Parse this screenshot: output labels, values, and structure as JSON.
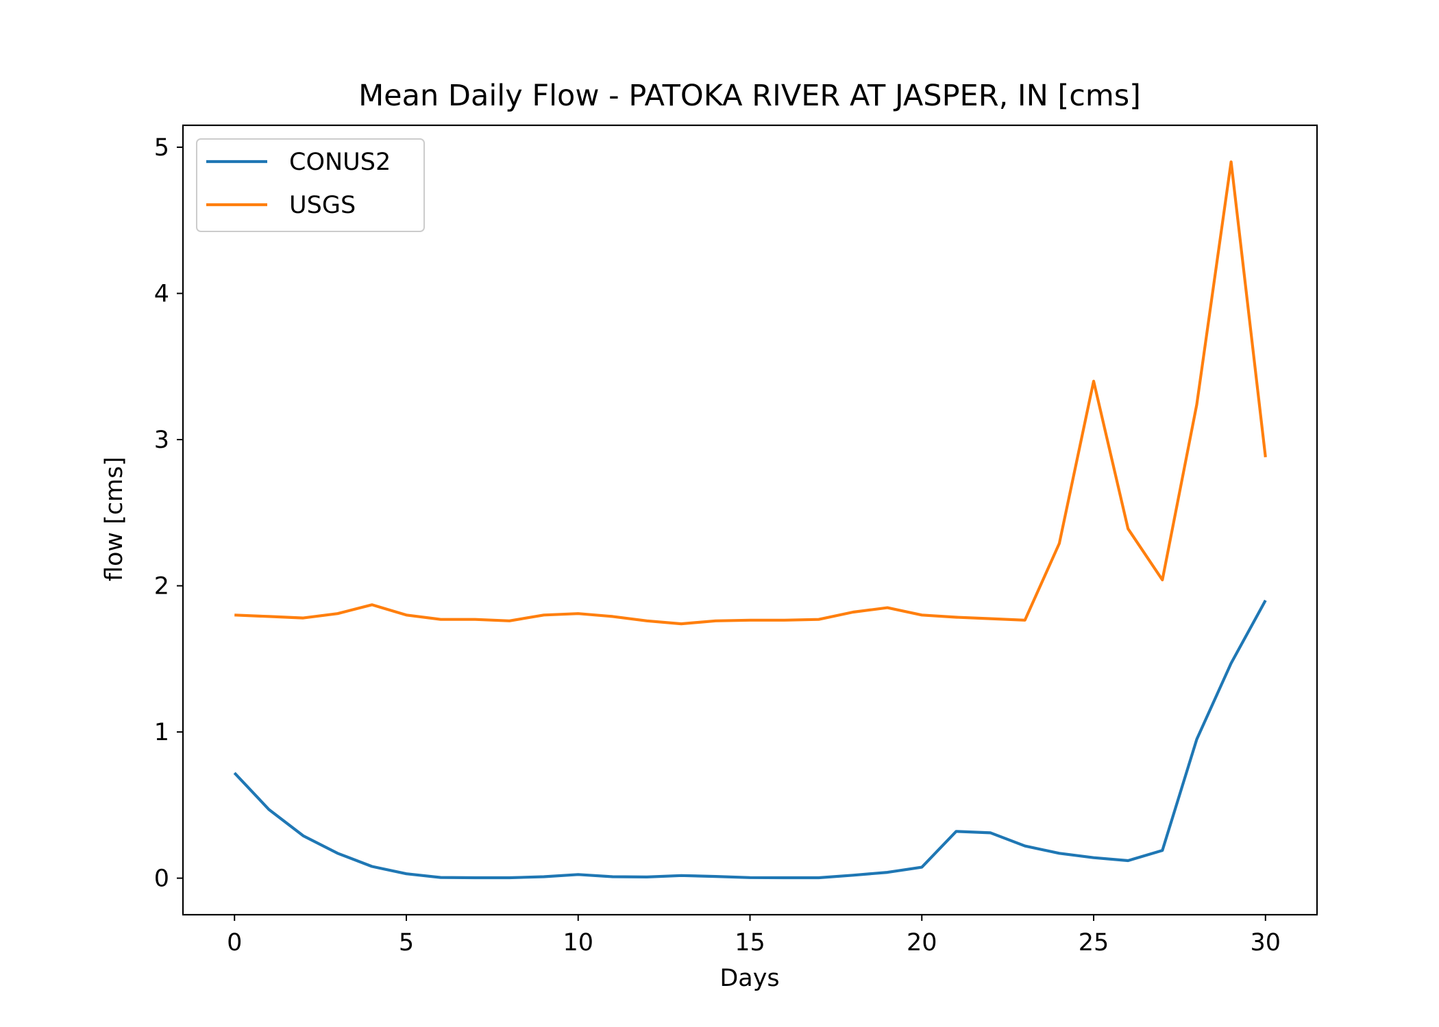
{
  "chart_data": {
    "type": "line",
    "title": "Mean Daily Flow - PATOKA RIVER AT JASPER, IN [cms]",
    "xlabel": "Days",
    "ylabel": "flow [cms]",
    "xlim": [
      -1.5,
      31.5
    ],
    "ylim": [
      -0.25,
      5.15
    ],
    "xticks": [
      0,
      5,
      10,
      15,
      20,
      25,
      30
    ],
    "yticks": [
      0,
      1,
      2,
      3,
      4,
      5
    ],
    "grid": false,
    "legend_position": "top-left",
    "x": [
      0,
      1,
      2,
      3,
      4,
      5,
      6,
      7,
      8,
      9,
      10,
      11,
      12,
      13,
      14,
      15,
      16,
      17,
      18,
      19,
      20,
      21,
      22,
      23,
      24,
      25,
      26,
      27,
      28,
      29,
      30
    ],
    "series": [
      {
        "name": "CONUS2",
        "color": "#1f77b4",
        "values": [
          0.72,
          0.47,
          0.29,
          0.17,
          0.08,
          0.03,
          0.005,
          0.003,
          0.003,
          0.01,
          0.025,
          0.01,
          0.008,
          0.018,
          0.012,
          0.004,
          0.003,
          0.003,
          0.02,
          0.04,
          0.075,
          0.32,
          0.31,
          0.22,
          0.17,
          0.14,
          0.12,
          0.19,
          0.95,
          1.47,
          1.9
        ]
      },
      {
        "name": "USGS",
        "color": "#ff7f0e",
        "values": [
          1.8,
          1.79,
          1.78,
          1.81,
          1.87,
          1.8,
          1.77,
          1.77,
          1.76,
          1.8,
          1.81,
          1.79,
          1.76,
          1.74,
          1.76,
          1.765,
          1.765,
          1.77,
          1.82,
          1.85,
          1.8,
          1.785,
          1.775,
          1.765,
          2.29,
          3.4,
          2.39,
          2.04,
          3.24,
          4.9,
          2.88
        ]
      }
    ]
  }
}
